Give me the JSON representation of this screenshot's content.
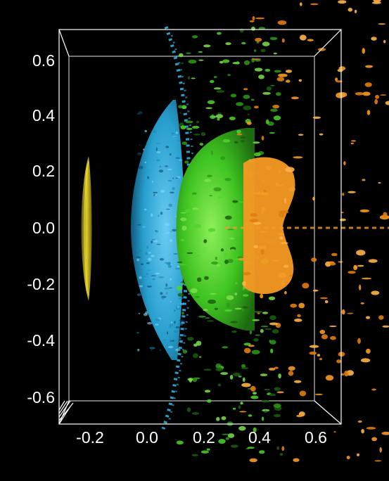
{
  "viewer": {
    "background": "#000000",
    "box_color": "#ffffff"
  },
  "axes": {
    "y_ticks": [
      "0.6",
      "0.4",
      "0.2",
      "0.0",
      "-0.2",
      "-0.4",
      "-0.6"
    ],
    "x_ticks": [
      "-0.2",
      "0.0",
      "0.2",
      "0.4",
      "0.6"
    ]
  },
  "isosurfaces": [
    {
      "color": "#d4c222",
      "shape": "thin-lens"
    },
    {
      "color": "#2bb5e6",
      "shape": "dome-shell"
    },
    {
      "color": "#3fd12a",
      "shape": "turbulent-dome"
    },
    {
      "color": "#f59a23",
      "shape": "scattered-blobs"
    }
  ]
}
